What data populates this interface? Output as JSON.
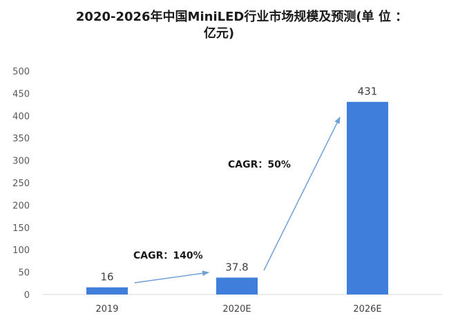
{
  "chart_data": {
    "type": "bar",
    "title_lines": [
      "2020-2026年中国MiniLED行业市场规模及预测(单 位 ：",
      "亿元)"
    ],
    "categories": [
      "2019",
      "2020E",
      "2026E"
    ],
    "values": [
      16,
      37.8,
      431
    ],
    "value_labels": [
      "16",
      "37.8",
      "431"
    ],
    "xlabel": "",
    "ylabel": "",
    "ylim": [
      0,
      500
    ],
    "yticks": [
      "0",
      "50",
      "100",
      "150",
      "200",
      "250",
      "300",
      "350",
      "400",
      "450",
      "500"
    ],
    "grid": false,
    "legend": "none",
    "bar_color": "#3F7FDB",
    "arrow_color": "#6F9FD6",
    "annotations": [
      {
        "text": "CAGR：140%",
        "from": "2019",
        "to": "2020E"
      },
      {
        "text": "CAGR：50%",
        "from": "2020E",
        "to": "2026E"
      }
    ]
  }
}
